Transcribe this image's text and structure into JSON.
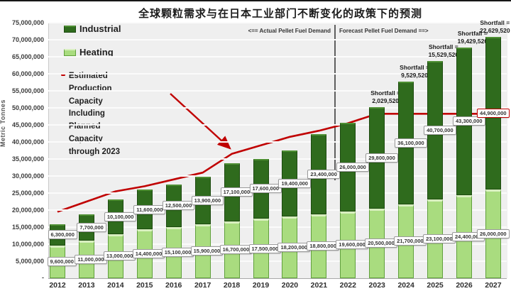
{
  "title": "全球颗粒需求与在日本工业部门不断变化的政策下的预测",
  "y_axis": {
    "label": "Metric Tonnes",
    "zero_tick": "-"
  },
  "legend": {
    "industrial": "Industrial",
    "heating": "Heating",
    "capacity_line_1": "Estimated Production Capacity Including Planned",
    "capacity_line_2": "Capacity through 2023"
  },
  "annotation": {
    "left": "<== Actual Pellet Fuel Demand",
    "right": "Forecast Pellet Fuel Demand ==>"
  },
  "colors": {
    "industrial": "#2f6b1d",
    "industrial_border": "#1d4a10",
    "heating": "#a9dc7f",
    "heating_border": "#61a03d",
    "capacity_line": "#c00000",
    "plot_background": "#efefef",
    "gridline": "#fbfbfb"
  },
  "chart_data": {
    "type": "bar",
    "stacked": true,
    "title": "全球颗粒需求与在日本工业部门不断变化的政策下的预测",
    "ylabel": "Metric Tonnes",
    "ylim": [
      0,
      75000000
    ],
    "ytick_step": 5000000,
    "grid": true,
    "legend_position": "top-left-inside",
    "categories": [
      "2012",
      "2013",
      "2014",
      "2015",
      "2016",
      "2017",
      "2018",
      "2019",
      "2020",
      "2021",
      "2022",
      "2023",
      "2024",
      "2025",
      "2026",
      "2027"
    ],
    "series": [
      {
        "name": "Heating",
        "values": [
          9600000,
          11000000,
          13000000,
          14400000,
          15100000,
          15900000,
          16700000,
          17500000,
          18200000,
          18800000,
          19600000,
          20500000,
          21700000,
          23100000,
          24400000,
          26000000
        ]
      },
      {
        "name": "Industrial",
        "values": [
          6300000,
          7700000,
          10100000,
          11600000,
          12500000,
          13900000,
          17100000,
          17600000,
          19400000,
          23400000,
          26000000,
          29800000,
          36100000,
          40700000,
          43300000,
          44900000
        ]
      }
    ],
    "line_series": {
      "name": "Estimated Production Capacity Including Planned Capacity through 2023",
      "values": [
        19500000,
        22500000,
        25500000,
        27000000,
        29000000,
        31000000,
        36500000,
        39000000,
        41500000,
        43300000,
        45500000,
        48270480,
        48270480,
        48270480,
        48270480,
        48270480
      ]
    },
    "shortfall_prefix": "Shortfall =",
    "shortfalls": [
      null,
      null,
      null,
      null,
      null,
      null,
      null,
      null,
      null,
      null,
      null,
      2029520,
      9529520,
      15529520,
      19429520,
      22629520
    ],
    "divider_between": [
      "2021",
      "2022"
    ],
    "red_bordered_label_year": "2027"
  }
}
